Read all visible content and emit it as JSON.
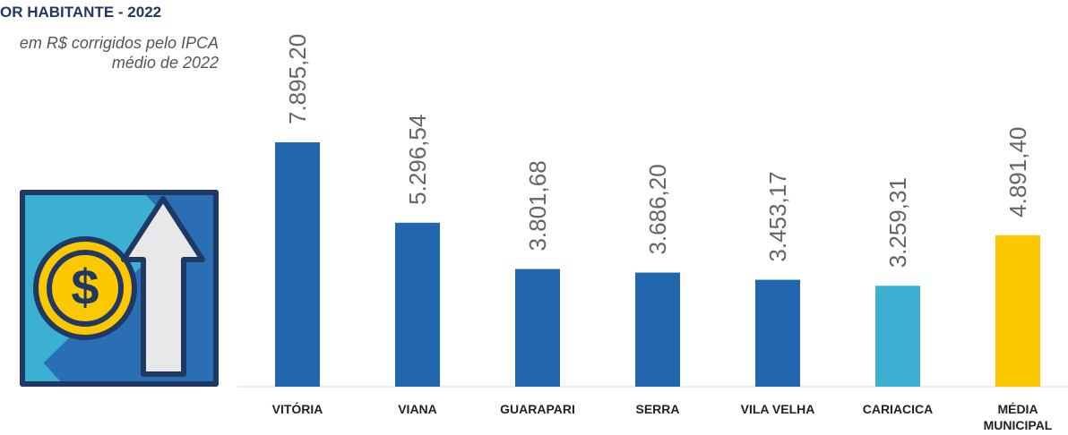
{
  "chart_data": {
    "type": "bar",
    "title": "OR HABITANTE - 2022",
    "subtitle": "em R$ corrigidos pelo IPCA médio de 2022",
    "categories": [
      "VITÓRIA",
      "VIANA",
      "GUARAPARI",
      "SERRA",
      "VILA VELHA",
      "CARIACICA",
      "MÉDIA MUNICIPAL"
    ],
    "values": [
      7895.2,
      5296.54,
      3801.68,
      3686.2,
      3453.17,
      3259.31,
      4891.4
    ],
    "value_labels": [
      "7.895,20",
      "5.296,54",
      "3.801,68",
      "3.686,20",
      "3.453,17",
      "3.259,31",
      "4.891,40"
    ],
    "colors": [
      "#2166ae",
      "#2166ae",
      "#2166ae",
      "#2166ae",
      "#2166ae",
      "#3bb0d0",
      "#fcc800"
    ]
  }
}
